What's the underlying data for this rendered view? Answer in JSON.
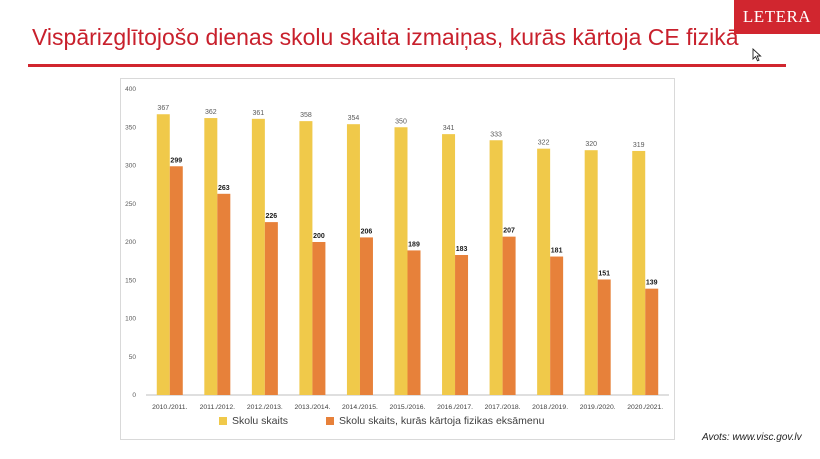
{
  "slide": {
    "title": "Vispārizglītojošo dienas skolu skaita izmaiņas, kurās kārtoja CE fizikā",
    "logo": "LETERA",
    "source": "Avots: www.visc.gov.lv",
    "accent_color": "#d1262f"
  },
  "chart_data": {
    "type": "bar",
    "categories": [
      "2010./2011.",
      "2011./2012.",
      "2012./2013.",
      "2013./2014.",
      "2014./2015.",
      "2015./2016.",
      "2016./2017.",
      "2017./2018.",
      "2018./2019.",
      "2019./2020.",
      "2020./2021."
    ],
    "series": [
      {
        "name": "Skolu skaits",
        "color": "#f0c94a",
        "label_bold": false,
        "values": [
          367,
          362,
          361,
          358,
          354,
          350,
          341,
          333,
          322,
          320,
          319
        ]
      },
      {
        "name": "Skolu skaits, kurās kārtoja fizikas eksāmenu",
        "color": "#e7813a",
        "label_bold": true,
        "values": [
          299,
          263,
          226,
          200,
          206,
          189,
          183,
          207,
          181,
          151,
          139
        ]
      }
    ],
    "ylim": [
      0,
      400
    ],
    "yticks": [
      0,
      50,
      100,
      150,
      200,
      250,
      300,
      350,
      400
    ],
    "grid": false,
    "legend_position": "bottom",
    "title": "",
    "xlabel": "",
    "ylabel": ""
  }
}
